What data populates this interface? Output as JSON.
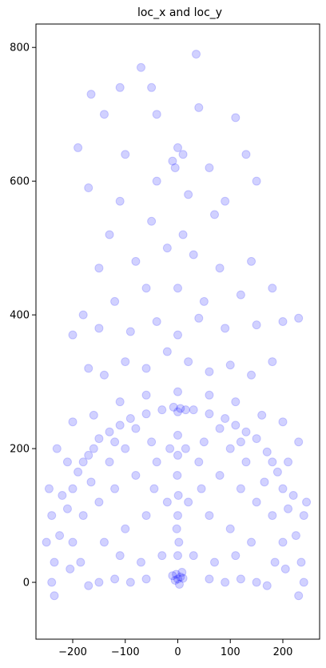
{
  "chart_data": {
    "type": "scatter",
    "title": "loc_x and loc_y",
    "xlabel": "",
    "ylabel": "",
    "xlim": [
      -270,
      270
    ],
    "ylim": [
      -85,
      835
    ],
    "xticks": [
      -200,
      -100,
      0,
      100,
      200
    ],
    "xtick_labels": [
      "−200",
      "−100",
      "0",
      "100",
      "200"
    ],
    "yticks": [
      0,
      200,
      400,
      600,
      800
    ],
    "ytick_labels": [
      "0",
      "200",
      "400",
      "600",
      "800"
    ],
    "grid": false,
    "series": [
      {
        "color": "#0000ff",
        "alpha": 0.05,
        "marker": "circle",
        "description_points": "dense shot-location cloud",
        "points": [
          [
            0,
            5
          ],
          [
            5,
            8
          ],
          [
            -5,
            3
          ],
          [
            10,
            6
          ],
          [
            -10,
            10
          ],
          [
            3,
            -3
          ],
          [
            -3,
            12
          ],
          [
            8,
            15
          ],
          [
            0,
            40
          ],
          [
            2,
            60
          ],
          [
            -2,
            80
          ],
          [
            0,
            100
          ],
          [
            1,
            130
          ],
          [
            -1,
            160
          ],
          [
            0,
            190
          ],
          [
            0,
            220
          ],
          [
            0,
            255
          ],
          [
            5,
            260
          ],
          [
            -8,
            262
          ],
          [
            15,
            258
          ],
          [
            -160,
            200
          ],
          [
            -170,
            190
          ],
          [
            -180,
            180
          ],
          [
            -150,
            215
          ],
          [
            -130,
            225
          ],
          [
            -110,
            235
          ],
          [
            -90,
            245
          ],
          [
            -60,
            252
          ],
          [
            -30,
            258
          ],
          [
            30,
            258
          ],
          [
            60,
            252
          ],
          [
            90,
            245
          ],
          [
            110,
            235
          ],
          [
            130,
            225
          ],
          [
            150,
            215
          ],
          [
            170,
            195
          ],
          [
            180,
            180
          ],
          [
            190,
            165
          ],
          [
            -190,
            165
          ],
          [
            -200,
            140
          ],
          [
            200,
            140
          ],
          [
            -210,
            110
          ],
          [
            210,
            110
          ],
          [
            -225,
            70
          ],
          [
            225,
            70
          ],
          [
            -235,
            30
          ],
          [
            235,
            30
          ],
          [
            -240,
            0
          ],
          [
            240,
            0
          ],
          [
            -235,
            -20
          ],
          [
            230,
            -20
          ],
          [
            -150,
            0
          ],
          [
            -120,
            5
          ],
          [
            -90,
            0
          ],
          [
            -60,
            5
          ],
          [
            60,
            5
          ],
          [
            90,
            0
          ],
          [
            120,
            5
          ],
          [
            150,
            0
          ],
          [
            170,
            -5
          ],
          [
            -170,
            -5
          ],
          [
            -140,
            60
          ],
          [
            -100,
            80
          ],
          [
            -60,
            100
          ],
          [
            60,
            100
          ],
          [
            100,
            80
          ],
          [
            140,
            60
          ],
          [
            -120,
            140
          ],
          [
            -80,
            160
          ],
          [
            -40,
            180
          ],
          [
            40,
            180
          ],
          [
            80,
            160
          ],
          [
            120,
            140
          ],
          [
            -100,
            200
          ],
          [
            100,
            200
          ],
          [
            -50,
            210
          ],
          [
            50,
            210
          ],
          [
            -180,
            100
          ],
          [
            180,
            100
          ],
          [
            -30,
            40
          ],
          [
            30,
            40
          ],
          [
            -70,
            30
          ],
          [
            70,
            30
          ],
          [
            -110,
            40
          ],
          [
            110,
            40
          ],
          [
            -150,
            120
          ],
          [
            150,
            120
          ],
          [
            -200,
            60
          ],
          [
            200,
            60
          ],
          [
            -20,
            120
          ],
          [
            20,
            120
          ],
          [
            -45,
            140
          ],
          [
            45,
            140
          ],
          [
            -15,
            200
          ],
          [
            15,
            200
          ],
          [
            -130,
            180
          ],
          [
            130,
            180
          ],
          [
            -165,
            150
          ],
          [
            165,
            150
          ],
          [
            -185,
            30
          ],
          [
            185,
            30
          ],
          [
            -205,
            20
          ],
          [
            205,
            20
          ],
          [
            -80,
            230
          ],
          [
            80,
            230
          ],
          [
            -120,
            210
          ],
          [
            120,
            210
          ],
          [
            -210,
            180
          ],
          [
            210,
            180
          ],
          [
            -220,
            130
          ],
          [
            220,
            130
          ],
          [
            -160,
            250
          ],
          [
            160,
            250
          ],
          [
            -200,
            240
          ],
          [
            200,
            240
          ],
          [
            -110,
            270
          ],
          [
            110,
            270
          ],
          [
            -60,
            280
          ],
          [
            60,
            280
          ],
          [
            0,
            285
          ],
          [
            -240,
            100
          ],
          [
            240,
            100
          ],
          [
            -250,
            60
          ],
          [
            -245,
            140
          ],
          [
            245,
            120
          ],
          [
            -230,
            200
          ],
          [
            230,
            210
          ],
          [
            -170,
            320
          ],
          [
            -140,
            310
          ],
          [
            -100,
            330
          ],
          [
            -60,
            320
          ],
          [
            -20,
            345
          ],
          [
            20,
            330
          ],
          [
            60,
            315
          ],
          [
            100,
            325
          ],
          [
            140,
            310
          ],
          [
            180,
            330
          ],
          [
            -200,
            370
          ],
          [
            -150,
            380
          ],
          [
            -90,
            375
          ],
          [
            -40,
            390
          ],
          [
            0,
            370
          ],
          [
            40,
            395
          ],
          [
            90,
            380
          ],
          [
            150,
            385
          ],
          [
            200,
            390
          ],
          [
            230,
            395
          ],
          [
            -180,
            400
          ],
          [
            -120,
            420
          ],
          [
            -60,
            440
          ],
          [
            0,
            440
          ],
          [
            50,
            420
          ],
          [
            120,
            430
          ],
          [
            180,
            440
          ],
          [
            -150,
            470
          ],
          [
            -80,
            480
          ],
          [
            -20,
            500
          ],
          [
            30,
            490
          ],
          [
            80,
            470
          ],
          [
            140,
            480
          ],
          [
            -130,
            520
          ],
          [
            -50,
            540
          ],
          [
            10,
            520
          ],
          [
            70,
            550
          ],
          [
            -170,
            590
          ],
          [
            -110,
            570
          ],
          [
            -40,
            600
          ],
          [
            20,
            580
          ],
          [
            90,
            570
          ],
          [
            150,
            600
          ],
          [
            -190,
            650
          ],
          [
            -100,
            640
          ],
          [
            -10,
            630
          ],
          [
            60,
            620
          ],
          [
            130,
            640
          ],
          [
            -140,
            700
          ],
          [
            -40,
            700
          ],
          [
            40,
            710
          ],
          [
            110,
            695
          ],
          [
            -70,
            770
          ],
          [
            -110,
            740
          ],
          [
            -50,
            740
          ],
          [
            35,
            790
          ],
          [
            -165,
            730
          ],
          [
            10,
            640
          ],
          [
            0,
            650
          ],
          [
            -5,
            620
          ]
        ]
      }
    ]
  }
}
